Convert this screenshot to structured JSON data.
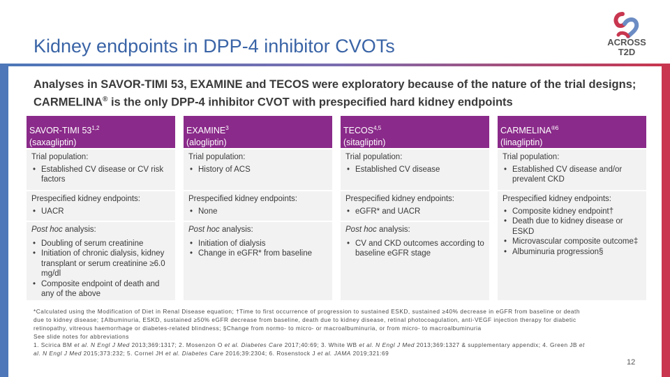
{
  "title": "Kidney endpoints in DPP-4 inhibitor CVOTs",
  "logo": {
    "line1": "ACROSS",
    "line2": "T2D"
  },
  "subtitle": {
    "text1": "Analyses in SAVOR-TIMI 53, EXAMINE and TECOS were exploratory because of the nature of the trial designs; CARMELINA",
    "reg": "®",
    "text2": " is the only DPP-4 inhibitor CVOT with prespecified hard kidney endpoints"
  },
  "columns": [
    {
      "name": "SAVOR-TIMI 53",
      "ref": "1,2",
      "drug": "(saxagliptin)",
      "population_label": "Trial population:",
      "population": [
        "Established CV disease or CV risk factors"
      ],
      "endpoints_label": "Prespecified kidney endpoints:",
      "endpoints": [
        "UACR"
      ],
      "posthoc_label": "analysis:",
      "posthoc": [
        "Doubling of serum creatinine",
        "Initiation of chronic dialysis, kidney transplant or serum creatinine ≥6.0 mg/dl",
        "Composite endpoint of death and any of the above"
      ]
    },
    {
      "name": "EXAMINE",
      "ref": "3",
      "drug": "(alogliptin)",
      "population_label": "Trial population:",
      "population": [
        "History of ACS"
      ],
      "endpoints_label": "Prespecified kidney endpoints:",
      "endpoints": [
        "None"
      ],
      "posthoc_label": "analysis:",
      "posthoc": [
        "Initiation of dialysis",
        "Change in eGFR* from baseline"
      ]
    },
    {
      "name": "TECOS",
      "ref": "4,5",
      "drug": "(sitagliptin)",
      "population_label": "Trial population:",
      "population": [
        "Established CV disease"
      ],
      "endpoints_label": "Prespecified kidney endpoints:",
      "endpoints": [
        "eGFR* and UACR"
      ],
      "posthoc_label": "analysis:",
      "posthoc": [
        "CV and CKD outcomes according to baseline eGFR stage"
      ]
    },
    {
      "name": "CARMELINA",
      "ref": "®6",
      "drug": "(linagliptin)",
      "population_label": "Trial population:",
      "population": [
        "Established CV disease and/or prevalent CKD"
      ],
      "endpoints_label": "Prespecified kidney endpoints:",
      "endpoints": [
        "Composite kidney endpoint†",
        "Death due to kidney disease or ESKD",
        "Microvascular composite outcome‡",
        "Albuminuria progression§"
      ]
    }
  ],
  "posthoc_prefix": "Post hoc",
  "footnotes": {
    "line1": "*Calculated using the Modification of Diet in Renal Disease equation; †Time to first occurrence of progression to sustained ESKD, sustained ≥40% decrease in eGFR from baseline or death due to kidney disease; ‡Albuminuria, ESKD, sustained ≥50% eGFR decrease from baseline, death due to kidney disease, retinal photocoagulation, anti-VEGF injection therapy for diabetic retinopathy, vitreous haemorrhage or diabetes-related blindness; §Change from normo- to micro- or macroalbuminuria, or from micro- to macroalbuminuria",
    "line2": "See slide notes for abbreviations",
    "refs": [
      {
        "pre": "1. Scirica BM ",
        "etal": "et al.",
        "journal": " N Engl J Med",
        "post": " 2013;369:1317; 2. Mosenzon O "
      },
      {
        "pre": "",
        "etal": "et al.",
        "journal": " Diabetes Care",
        "post": " 2017;40:69; 3. White WB "
      },
      {
        "pre": "",
        "etal": "et al.",
        "journal": " N Engl J Med",
        "post": " 2013;369:1327 & supplementary appendix; 4. Green JB "
      },
      {
        "pre": "",
        "etal": "et al.",
        "journal": " N Engl J Med",
        "post": " 2015;373:232; 5. Cornel JH "
      },
      {
        "pre": "",
        "etal": "et al.",
        "journal": " Diabetes Care",
        "post": " 2016;39:2304; 6. Rosenstock J "
      },
      {
        "pre": "",
        "etal": "et al.",
        "journal": " JAMA",
        "post": " 2019;321:69"
      }
    ]
  },
  "page_number": "12",
  "colors": {
    "title_blue": "#3a64a6",
    "header_purple": "#8a2a8a",
    "bar_blue": "#4d77b8",
    "bar_red": "#c8364f",
    "cell_grey": "#f2f2f2"
  }
}
